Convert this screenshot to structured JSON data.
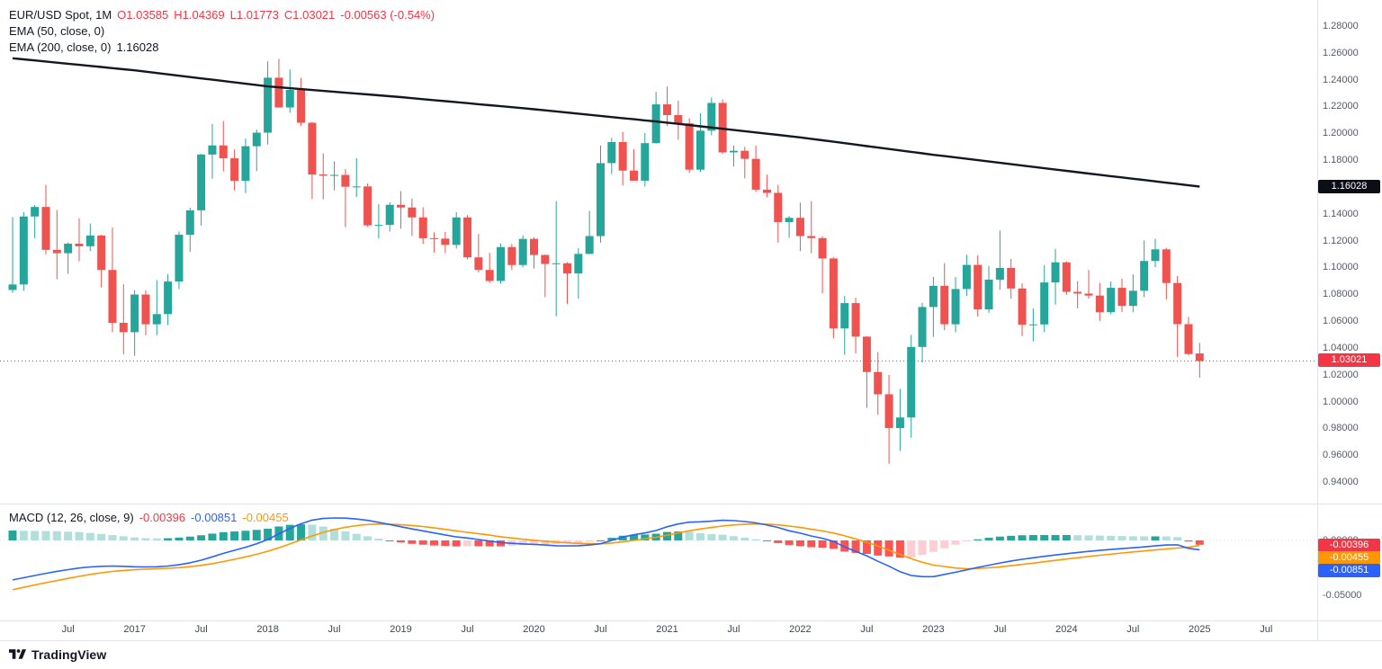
{
  "legend": {
    "symbol": "EUR/USD Spot, 1M",
    "open": "O1.03585",
    "high": "H1.04369",
    "low": "L1.01773",
    "close": "C1.03021",
    "change": "-0.00563 (-0.54%)",
    "ema50": "EMA (50, close, 0)",
    "ema200": "EMA (200, close, 0)",
    "ema200_value": "1.16028",
    "macd": "MACD (12, 26, close, 9)",
    "macd_hist": "-0.00396",
    "macd_line": "-0.00851",
    "macd_signal": "-0.00455"
  },
  "axis": {
    "price_ticks": [
      "1.28000",
      "1.26000",
      "1.24000",
      "1.22000",
      "1.20000",
      "1.18000",
      "1.14000",
      "1.12000",
      "1.10000",
      "1.08000",
      "1.06000",
      "1.04000",
      "1.02000",
      "1.00000",
      "0.98000",
      "0.96000",
      "0.94000"
    ],
    "ema200_chip": "1.16028",
    "last_price_chip": "1.03021",
    "macd_ticks": [
      {
        "label": "0.00000",
        "value": 0
      },
      {
        "label": "-0.05000",
        "value": -0.05
      }
    ],
    "macd_chips": [
      {
        "label": "-0.00396",
        "color": "#f23645"
      },
      {
        "label": "-0.00455",
        "color": "#ff9800"
      },
      {
        "label": "-0.00851",
        "color": "#2962ff"
      }
    ]
  },
  "time_axis": [
    {
      "label": "Jul",
      "month_index": 5
    },
    {
      "label": "2017",
      "month_index": 11
    },
    {
      "label": "Jul",
      "month_index": 17
    },
    {
      "label": "2018",
      "month_index": 23
    },
    {
      "label": "Jul",
      "month_index": 29
    },
    {
      "label": "2019",
      "month_index": 35
    },
    {
      "label": "Jul",
      "month_index": 41
    },
    {
      "label": "2020",
      "month_index": 47
    },
    {
      "label": "Jul",
      "month_index": 53
    },
    {
      "label": "2021",
      "month_index": 59
    },
    {
      "label": "Jul",
      "month_index": 65
    },
    {
      "label": "2022",
      "month_index": 71
    },
    {
      "label": "Jul",
      "month_index": 77
    },
    {
      "label": "2023",
      "month_index": 83
    },
    {
      "label": "Jul",
      "month_index": 89
    },
    {
      "label": "2024",
      "month_index": 95
    },
    {
      "label": "Jul",
      "month_index": 101
    },
    {
      "label": "2025",
      "month_index": 107
    },
    {
      "label": "Jul",
      "month_index": 113
    }
  ],
  "footer": {
    "brand": "TradingView"
  },
  "colors": {
    "up": "#26a69a",
    "down": "#ef5350",
    "ema200": "#131722",
    "macd_line": "#2962ff",
    "signal_line": "#ff9800",
    "hist_grow_above": "#26a69a",
    "hist_fall_above": "#b2dfdb",
    "hist_grow_below": "#ffcdd2",
    "hist_fall_below": "#ff5252",
    "last_price": "#f23645"
  },
  "chart_data": {
    "type": "candlestick",
    "symbol": "EUR/USD Spot",
    "timeframe": "1M",
    "start_month": "2016-02",
    "price_axis_range": [
      0.94,
      1.28
    ],
    "last": {
      "open": 1.03585,
      "high": 1.04369,
      "low": 1.01773,
      "close": 1.03021,
      "change": -0.00563,
      "change_pct": -0.54
    },
    "ema200_last": 1.16028,
    "candles": [
      [
        1.0832,
        1.1376,
        1.081,
        1.0873
      ],
      [
        1.0873,
        1.1412,
        1.0826,
        1.138
      ],
      [
        1.138,
        1.1465,
        1.1217,
        1.1451
      ],
      [
        1.1451,
        1.1616,
        1.1097,
        1.1131
      ],
      [
        1.1131,
        1.1428,
        1.0912,
        1.1106
      ],
      [
        1.1106,
        1.1186,
        1.0952,
        1.1177
      ],
      [
        1.1177,
        1.1366,
        1.1046,
        1.1158
      ],
      [
        1.1158,
        1.1327,
        1.1123,
        1.1238
      ],
      [
        1.1238,
        1.1243,
        1.0851,
        1.0981
      ],
      [
        1.0981,
        1.1299,
        1.0518,
        1.0587
      ],
      [
        1.0587,
        1.0873,
        1.0352,
        1.0517
      ],
      [
        1.0517,
        1.083,
        1.0341,
        1.0798
      ],
      [
        1.0798,
        1.0829,
        1.0494,
        1.0576
      ],
      [
        1.0576,
        1.0906,
        1.0495,
        1.0652
      ],
      [
        1.0652,
        1.0951,
        1.057,
        1.0895
      ],
      [
        1.0895,
        1.1268,
        1.0839,
        1.1244
      ],
      [
        1.1244,
        1.1445,
        1.1118,
        1.1426
      ],
      [
        1.1426,
        1.1846,
        1.1312,
        1.1842
      ],
      [
        1.1842,
        1.207,
        1.1662,
        1.191
      ],
      [
        1.191,
        1.2092,
        1.1717,
        1.1814
      ],
      [
        1.1814,
        1.188,
        1.1574,
        1.1646
      ],
      [
        1.1646,
        1.1961,
        1.1554,
        1.1904
      ],
      [
        1.1904,
        1.2028,
        1.1718,
        1.2005
      ],
      [
        1.2005,
        1.2537,
        1.1916,
        1.2415
      ],
      [
        1.2415,
        1.2556,
        1.2206,
        1.2193
      ],
      [
        1.2193,
        1.2476,
        1.2154,
        1.2324
      ],
      [
        1.2324,
        1.2414,
        1.2055,
        1.2079
      ],
      [
        1.2079,
        1.2086,
        1.151,
        1.1693
      ],
      [
        1.1693,
        1.1851,
        1.1508,
        1.1684
      ],
      [
        1.1684,
        1.1791,
        1.1575,
        1.169
      ],
      [
        1.169,
        1.1733,
        1.1301,
        1.1602
      ],
      [
        1.1602,
        1.1815,
        1.1526,
        1.1604
      ],
      [
        1.1604,
        1.1625,
        1.1302,
        1.1314
      ],
      [
        1.1314,
        1.1472,
        1.1216,
        1.1317
      ],
      [
        1.1317,
        1.1486,
        1.1267,
        1.1467
      ],
      [
        1.1467,
        1.157,
        1.1289,
        1.1447
      ],
      [
        1.1447,
        1.1514,
        1.1234,
        1.1373
      ],
      [
        1.1373,
        1.1448,
        1.1176,
        1.1218
      ],
      [
        1.1218,
        1.1262,
        1.1111,
        1.1215
      ],
      [
        1.1215,
        1.1265,
        1.1107,
        1.1168
      ],
      [
        1.1168,
        1.1412,
        1.1141,
        1.1373
      ],
      [
        1.1373,
        1.139,
        1.106,
        1.1075
      ],
      [
        1.1075,
        1.1249,
        1.0963,
        1.0981
      ],
      [
        1.0981,
        1.1109,
        1.0885,
        1.0899
      ],
      [
        1.0899,
        1.1179,
        1.0879,
        1.1152
      ],
      [
        1.1152,
        1.1175,
        1.0981,
        1.1018
      ],
      [
        1.1018,
        1.1239,
        1.1002,
        1.1213
      ],
      [
        1.1213,
        1.1225,
        1.0992,
        1.1093
      ],
      [
        1.1093,
        1.1096,
        1.0778,
        1.1026
      ],
      [
        1.1026,
        1.1495,
        1.0636,
        1.1031
      ],
      [
        1.1031,
        1.1039,
        1.0727,
        1.0955
      ],
      [
        1.0955,
        1.1145,
        1.0767,
        1.1101
      ],
      [
        1.1101,
        1.1422,
        1.1098,
        1.1234
      ],
      [
        1.1234,
        1.1909,
        1.1185,
        1.1778
      ],
      [
        1.1778,
        1.1966,
        1.1696,
        1.1935
      ],
      [
        1.1935,
        1.2011,
        1.1612,
        1.1722
      ],
      [
        1.1722,
        1.1881,
        1.165,
        1.1647
      ],
      [
        1.1647,
        1.2003,
        1.1603,
        1.1927
      ],
      [
        1.1927,
        1.231,
        1.1924,
        1.2216
      ],
      [
        1.2216,
        1.2349,
        1.2054,
        1.2136
      ],
      [
        1.2136,
        1.2243,
        1.1952,
        1.2075
      ],
      [
        1.2075,
        1.2113,
        1.1704,
        1.1729
      ],
      [
        1.1729,
        1.215,
        1.1713,
        1.202
      ],
      [
        1.202,
        1.2267,
        1.1986,
        1.2227
      ],
      [
        1.2227,
        1.2254,
        1.1845,
        1.1858
      ],
      [
        1.1858,
        1.1909,
        1.1752,
        1.187
      ],
      [
        1.187,
        1.1899,
        1.1664,
        1.181
      ],
      [
        1.181,
        1.1909,
        1.1563,
        1.158
      ],
      [
        1.158,
        1.1692,
        1.1524,
        1.1556
      ],
      [
        1.1556,
        1.1616,
        1.1186,
        1.1338
      ],
      [
        1.1338,
        1.1383,
        1.1221,
        1.137
      ],
      [
        1.137,
        1.1483,
        1.1121,
        1.1234
      ],
      [
        1.1234,
        1.1495,
        1.1106,
        1.1219
      ],
      [
        1.1219,
        1.1233,
        1.0806,
        1.1067
      ],
      [
        1.1067,
        1.1076,
        1.0471,
        1.0545
      ],
      [
        1.0545,
        1.0787,
        1.0349,
        1.0734
      ],
      [
        1.0734,
        1.0774,
        1.0359,
        1.0484
      ],
      [
        1.0484,
        1.0487,
        0.9952,
        1.022
      ],
      [
        1.022,
        1.0369,
        0.99,
        1.0054
      ],
      [
        1.0054,
        1.0198,
        0.9536,
        0.9802
      ],
      [
        0.9802,
        1.0094,
        0.9632,
        0.9881
      ],
      [
        0.9881,
        1.0497,
        0.973,
        1.0407
      ],
      [
        1.0407,
        1.0736,
        1.029,
        1.0705
      ],
      [
        1.0705,
        1.0929,
        1.0482,
        1.0863
      ],
      [
        1.0863,
        1.1032,
        1.0532,
        1.0576
      ],
      [
        1.0576,
        1.0929,
        1.0516,
        1.0839
      ],
      [
        1.0839,
        1.1095,
        1.0788,
        1.1019
      ],
      [
        1.1019,
        1.1091,
        1.0635,
        1.0687
      ],
      [
        1.0687,
        1.1012,
        1.0662,
        1.0909
      ],
      [
        1.0909,
        1.1276,
        1.0834,
        1.0996
      ],
      [
        1.0996,
        1.1064,
        1.0766,
        1.0843
      ],
      [
        1.0843,
        1.0882,
        1.0488,
        1.0573
      ],
      [
        1.0573,
        1.0694,
        1.0448,
        1.0575
      ],
      [
        1.0575,
        1.1017,
        1.0517,
        1.0888
      ],
      [
        1.0888,
        1.1139,
        1.0723,
        1.1038
      ],
      [
        1.1038,
        1.1046,
        1.0795,
        1.0818
      ],
      [
        1.0818,
        1.0898,
        1.0695,
        1.0805
      ],
      [
        1.0805,
        1.0981,
        1.0768,
        1.079
      ],
      [
        1.079,
        1.0885,
        1.0601,
        1.0666
      ],
      [
        1.0666,
        1.0895,
        1.065,
        1.0848
      ],
      [
        1.0848,
        1.0916,
        1.0667,
        1.0713
      ],
      [
        1.0713,
        1.0948,
        1.0666,
        1.0826
      ],
      [
        1.0826,
        1.1202,
        1.0778,
        1.1048
      ],
      [
        1.1048,
        1.1214,
        1.1002,
        1.1135
      ],
      [
        1.1135,
        1.1147,
        1.0761,
        1.0884
      ],
      [
        1.0884,
        1.0937,
        1.0333,
        1.0577
      ],
      [
        1.0577,
        1.063,
        1.0344,
        1.0354
      ],
      [
        1.03585,
        1.04369,
        1.01773,
        1.03021
      ]
    ],
    "ema200_anchors": [
      [
        0,
        1.256
      ],
      [
        11,
        1.247
      ],
      [
        23,
        1.235
      ],
      [
        35,
        1.227
      ],
      [
        47,
        1.218
      ],
      [
        59,
        1.208
      ],
      [
        71,
        1.197
      ],
      [
        83,
        1.184
      ],
      [
        95,
        1.172
      ],
      [
        107,
        1.16028
      ]
    ],
    "macd": {
      "params": [
        12,
        26,
        9
      ],
      "axis_range": [
        -0.05,
        0
      ],
      "last": {
        "hist": -0.00396,
        "macd": -0.00851,
        "signal": -0.00455
      },
      "macd_line": [
        -0.036,
        -0.034,
        -0.032,
        -0.03,
        -0.0282,
        -0.0266,
        -0.0252,
        -0.0242,
        -0.0236,
        -0.0234,
        -0.0236,
        -0.024,
        -0.0242,
        -0.024,
        -0.0234,
        -0.0222,
        -0.0204,
        -0.018,
        -0.015,
        -0.0118,
        -0.009,
        -0.0062,
        -0.003,
        0.0008,
        0.006,
        0.011,
        0.0152,
        0.0185,
        0.02,
        0.0205,
        0.0203,
        0.0195,
        0.0183,
        0.0165,
        0.0145,
        0.0125,
        0.0105,
        0.0087,
        0.0068,
        0.005,
        0.0032,
        0.0022,
        0.0008,
        -0.0006,
        -0.002,
        -0.0026,
        -0.0032,
        -0.0036,
        -0.0042,
        -0.0048,
        -0.005,
        -0.0048,
        -0.0042,
        -0.003,
        0.0,
        0.003,
        0.0052,
        0.0068,
        0.009,
        0.0125,
        0.015,
        0.0166,
        0.017,
        0.0175,
        0.0184,
        0.018,
        0.0172,
        0.016,
        0.014,
        0.0118,
        0.0088,
        0.0066,
        0.004,
        0.002,
        -0.001,
        -0.006,
        -0.01,
        -0.014,
        -0.019,
        -0.0235,
        -0.0285,
        -0.032,
        -0.033,
        -0.033,
        -0.031,
        -0.029,
        -0.0268,
        -0.0246,
        -0.0226,
        -0.0206,
        -0.0188,
        -0.0172,
        -0.0158,
        -0.0145,
        -0.0133,
        -0.0121,
        -0.011,
        -0.01,
        -0.0091,
        -0.0083,
        -0.0075,
        -0.0067,
        -0.0059,
        -0.005,
        -0.0042,
        -0.004,
        -0.0072,
        -0.00851
      ],
      "signal_line": [
        -0.045,
        -0.0428,
        -0.0406,
        -0.0385,
        -0.0366,
        -0.0346,
        -0.0328,
        -0.031,
        -0.0295,
        -0.0283,
        -0.0274,
        -0.0267,
        -0.0262,
        -0.0258,
        -0.0254,
        -0.0248,
        -0.0239,
        -0.0227,
        -0.0212,
        -0.0193,
        -0.0172,
        -0.015,
        -0.0126,
        -0.0099,
        -0.0067,
        -0.0032,
        0.0005,
        0.0041,
        0.0073,
        0.0099,
        0.012,
        0.0135,
        0.0145,
        0.0149,
        0.0148,
        0.0143,
        0.0136,
        0.0126,
        0.0114,
        0.0101,
        0.0087,
        0.0074,
        0.0061,
        0.0048,
        0.0034,
        0.0022,
        0.0011,
        0.0002,
        -0.0007,
        -0.0015,
        -0.0022,
        -0.0027,
        -0.003,
        -0.003,
        -0.0024,
        -0.0013,
        0.0,
        0.0014,
        0.0029,
        0.0048,
        0.0068,
        0.0088,
        0.0104,
        0.0118,
        0.0131,
        0.0141,
        0.0147,
        0.015,
        0.0148,
        0.0142,
        0.0131,
        0.0118,
        0.0102,
        0.0086,
        0.0067,
        0.0042,
        0.0014,
        -0.0017,
        -0.0052,
        -0.0089,
        -0.0128,
        -0.0166,
        -0.0199,
        -0.0225,
        -0.0238,
        -0.0252,
        -0.0258,
        -0.0256,
        -0.025,
        -0.0241,
        -0.023,
        -0.0219,
        -0.0207,
        -0.0194,
        -0.0182,
        -0.017,
        -0.0158,
        -0.0146,
        -0.0135,
        -0.0125,
        -0.0115,
        -0.0105,
        -0.0096,
        -0.0087,
        -0.0078,
        -0.007,
        -0.0062,
        -0.00455
      ]
    }
  }
}
